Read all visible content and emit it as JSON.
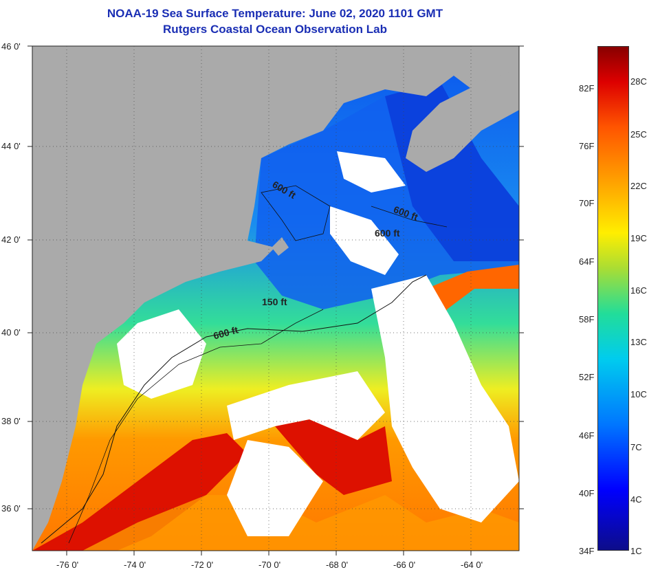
{
  "title": {
    "line1": "NOAA-19 Sea Surface Temperature:  June 02, 2020 1101 GMT",
    "line2": "Rutgers Coastal Ocean Observation Lab"
  },
  "lat_labels": [
    "46 0'",
    "44 0'",
    "42 0'",
    "40 0'",
    "38 0'",
    "36 0'"
  ],
  "lon_labels": [
    "-76 0'",
    "-74 0'",
    "-72 0'",
    "-70 0'",
    "-68 0'",
    "-66 0'",
    "-64 0'"
  ],
  "contours": [
    "600 ft",
    "600 ft",
    "600 ft",
    "150 ft",
    "600 ft"
  ],
  "colorbar": {
    "fahrenheit": [
      "82F",
      "76F",
      "70F",
      "64F",
      "58F",
      "52F",
      "46F",
      "40F",
      "34F"
    ],
    "celsius": [
      "28C",
      "25C",
      "22C",
      "19C",
      "16C",
      "13C",
      "10C",
      "7C",
      "4C",
      "1C"
    ]
  },
  "colors": {
    "land": "#aaaaaa",
    "cloud": "#ffffff",
    "title": "#1a2eb4"
  }
}
